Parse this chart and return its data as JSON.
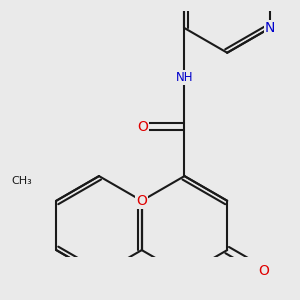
{
  "bg_color": "#eaeaea",
  "bond_color": "#1a1a1a",
  "bond_width": 1.5,
  "dbo": 0.05,
  "atom_colors": {
    "O": "#e00000",
    "N": "#0000cc",
    "C": "#1a1a1a"
  },
  "font_size": 8.5,
  "fig_size": [
    3.0,
    3.0
  ],
  "dpi": 100,
  "xlim": [
    -1.6,
    2.1
  ],
  "ylim": [
    -1.6,
    1.5
  ]
}
